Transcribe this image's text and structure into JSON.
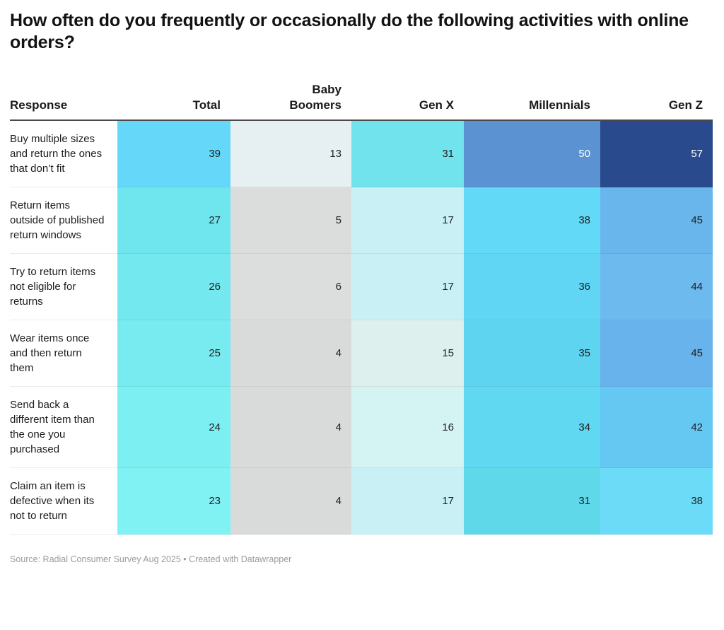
{
  "title": "How often do you frequently or occasionally do the following activities with online orders?",
  "footer": {
    "text": "Source: Radial Consumer Survey Aug 2025 • Created with Datawrapper"
  },
  "theme": {
    "cell_text_color": "#222222",
    "header_rule_color": "#4a4a4a",
    "title_color": "#121212",
    "source_color": "#9b9b9b"
  },
  "table": {
    "columns": [
      {
        "id": "response",
        "label": "Response"
      },
      {
        "id": "total",
        "label": "Total"
      },
      {
        "id": "baby-boomers",
        "label": "Baby\nBoomers"
      },
      {
        "id": "gen-x",
        "label": "Gen X"
      },
      {
        "id": "millennials",
        "label": "Millennials"
      },
      {
        "id": "gen-z",
        "label": "Gen Z"
      }
    ],
    "rows": [
      {
        "label": "Buy multiple sizes and return the ones that don’t fit",
        "cells": [
          {
            "value": "39",
            "bg": "#65d8f9"
          },
          {
            "value": "13",
            "bg": "#e6eff1"
          },
          {
            "value": "31",
            "bg": "#71e3ed"
          },
          {
            "value": "50",
            "bg": "#5b92d2",
            "fg": "#ffffff"
          },
          {
            "value": "57",
            "bg": "#294b8d",
            "fg": "#ffffff"
          }
        ]
      },
      {
        "label": "Return items outside of published return windows",
        "cells": [
          {
            "value": "27",
            "bg": "#6fe6ee"
          },
          {
            "value": "5",
            "bg": "#dbdcdc"
          },
          {
            "value": "17",
            "bg": "#c9f1f5"
          },
          {
            "value": "38",
            "bg": "#62d9f7"
          },
          {
            "value": "45",
            "bg": "#69b6ed"
          }
        ]
      },
      {
        "label": "Try to return items not eligible for returns",
        "cells": [
          {
            "value": "26",
            "bg": "#73e8ef"
          },
          {
            "value": "6",
            "bg": "#dcdddd"
          },
          {
            "value": "17",
            "bg": "#c9f1f5"
          },
          {
            "value": "36",
            "bg": "#60d6f4"
          },
          {
            "value": "44",
            "bg": "#6dbaef"
          }
        ]
      },
      {
        "label": "Wear items once and then return them",
        "cells": [
          {
            "value": "25",
            "bg": "#77ebf0"
          },
          {
            "value": "4",
            "bg": "#d9dbdb"
          },
          {
            "value": "15",
            "bg": "#def0ee"
          },
          {
            "value": "35",
            "bg": "#5fd4f1"
          },
          {
            "value": "45",
            "bg": "#68b3ec"
          }
        ]
      },
      {
        "label": "Send back a different item than the one you purchased",
        "cells": [
          {
            "value": "24",
            "bg": "#7ceff2"
          },
          {
            "value": "4",
            "bg": "#d9dbdb"
          },
          {
            "value": "16",
            "bg": "#d4f3f3"
          },
          {
            "value": "34",
            "bg": "#60d8f2"
          },
          {
            "value": "42",
            "bg": "#64c8f3"
          }
        ]
      },
      {
        "label": "Claim an item is defective when its not to return",
        "cells": [
          {
            "value": "23",
            "bg": "#80f2f3"
          },
          {
            "value": "4",
            "bg": "#d9dbdb"
          },
          {
            "value": "17",
            "bg": "#c9f1f5"
          },
          {
            "value": "31",
            "bg": "#5fd8e9"
          },
          {
            "value": "38",
            "bg": "#6cdbf8"
          }
        ]
      }
    ]
  },
  "chart_data": {
    "type": "heatmap",
    "title": "How often do you frequently or occasionally do the following activities with online orders?",
    "columns": [
      "Total",
      "Baby Boomers",
      "Gen X",
      "Millennials",
      "Gen Z"
    ],
    "rows": [
      "Buy multiple sizes and return the ones that don’t fit",
      "Return items outside of published return windows",
      "Try to return items not eligible for returns",
      "Wear items once and then return them",
      "Send back a different item than the one you purchased",
      "Claim an item is defective when its not to return"
    ],
    "values": [
      [
        39,
        13,
        31,
        50,
        57
      ],
      [
        27,
        5,
        17,
        38,
        45
      ],
      [
        26,
        6,
        17,
        36,
        44
      ],
      [
        25,
        4,
        15,
        35,
        45
      ],
      [
        24,
        4,
        16,
        34,
        42
      ],
      [
        23,
        4,
        17,
        31,
        38
      ]
    ],
    "value_range": [
      4,
      57
    ],
    "legend_position": "none",
    "source": "Radial Consumer Survey Aug 2025",
    "tool": "Datawrapper"
  }
}
